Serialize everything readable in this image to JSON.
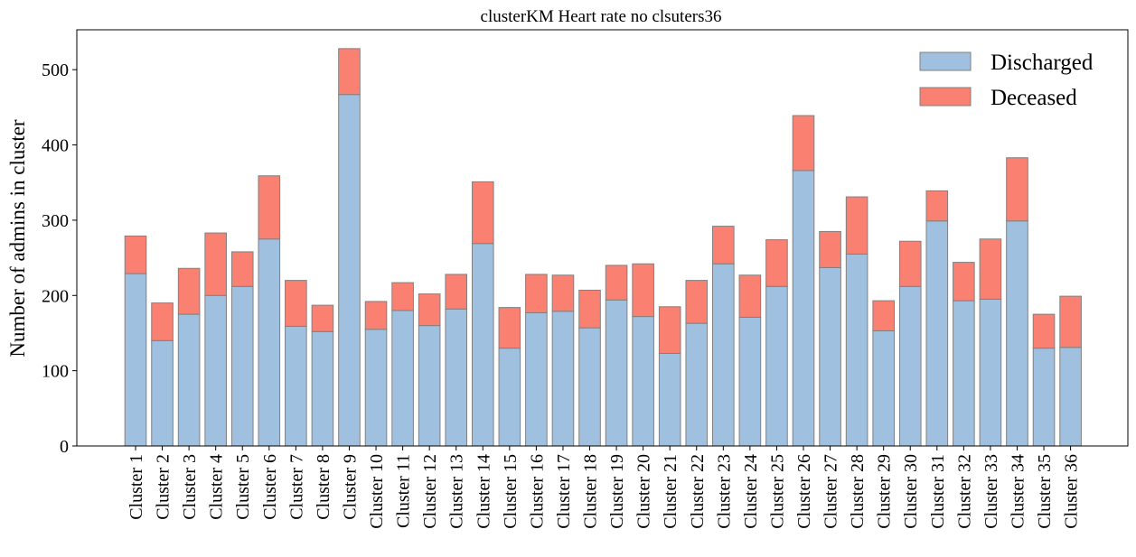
{
  "chart_data": {
    "type": "bar",
    "stacked": true,
    "title": "clusterKM Heart rate no clsuters36",
    "xlabel": "",
    "ylabel": "Number of admins in cluster",
    "ylim": [
      0,
      553
    ],
    "yticks": [
      0,
      100,
      200,
      300,
      400,
      500
    ],
    "grid": false,
    "legend_position": "top-right",
    "categories": [
      "Cluster 1",
      "Cluster 2",
      "Cluster 3",
      "Cluster 4",
      "Cluster 5",
      "Cluster 6",
      "Cluster 7",
      "Cluster 8",
      "Cluster 9",
      "Cluster 10",
      "Cluster 11",
      "Cluster 12",
      "Cluster 13",
      "Cluster 14",
      "Cluster 15",
      "Cluster 16",
      "Cluster 17",
      "Cluster 18",
      "Cluster 19",
      "Cluster 20",
      "Cluster 21",
      "Cluster 22",
      "Cluster 23",
      "Cluster 24",
      "Cluster 25",
      "Cluster 26",
      "Cluster 27",
      "Cluster 28",
      "Cluster 29",
      "Cluster 30",
      "Cluster 31",
      "Cluster 32",
      "Cluster 33",
      "Cluster 34",
      "Cluster 35",
      "Cluster 36"
    ],
    "series": [
      {
        "name": "Discharged",
        "color": "#a0c0e0",
        "values": [
          229,
          140,
          175,
          200,
          212,
          275,
          159,
          152,
          467,
          155,
          180,
          160,
          182,
          269,
          130,
          177,
          179,
          157,
          194,
          172,
          123,
          163,
          242,
          171,
          212,
          366,
          237,
          255,
          153,
          212,
          299,
          193,
          195,
          299,
          130,
          131
        ]
      },
      {
        "name": "Deceased",
        "color": "#fa8072",
        "values": [
          50,
          50,
          61,
          83,
          46,
          84,
          61,
          35,
          61,
          37,
          37,
          42,
          46,
          82,
          54,
          51,
          48,
          50,
          46,
          70,
          62,
          57,
          50,
          56,
          62,
          73,
          48,
          76,
          40,
          60,
          40,
          51,
          80,
          84,
          45,
          68
        ]
      }
    ],
    "edge_color": "#808080"
  }
}
